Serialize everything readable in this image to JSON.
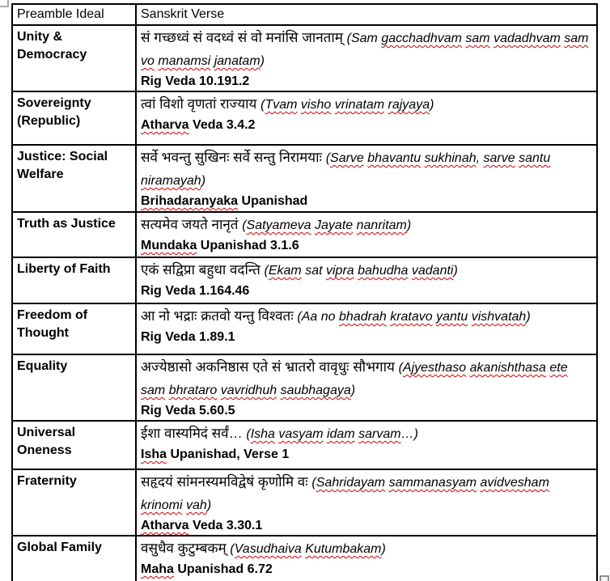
{
  "colors": {
    "border": "#000000",
    "text": "#000000",
    "spellcheck_underline": "#d40000",
    "handle_gray": "#9e9e9e",
    "background": "#ffffff"
  },
  "icons": {
    "move_handle": "table-move-handle",
    "resize_handle": "table-resize-handle"
  },
  "table": {
    "headers": [
      "Preamble Ideal",
      "Sanskrit Verse"
    ],
    "rows": [
      {
        "ideal": "Unity & Democracy",
        "devanagari": "सं गच्छध्वं सं वदध्वं सं वो मनांसि जानताम्",
        "transliteration": "(Sam gacchadhvam sam vadadhvam sam vo manamsi janatam)",
        "transliteration_flagged": [
          "gacchadhvam",
          "sam",
          "vadadhvam",
          "vo",
          "manamsi",
          "janatam"
        ],
        "citation": "Rig Veda 10.191.2",
        "citation_flagged": []
      },
      {
        "ideal": "Sovereignty (Republic)",
        "devanagari": "त्वां विशो वृणतां राज्याय",
        "transliteration": "(Tvam visho vrinatam rajyaya)",
        "transliteration_flagged": [
          "Tvam",
          "visho",
          "vrinatam",
          "rajyaya"
        ],
        "citation": "Atharva Veda 3.4.2",
        "citation_flagged": [
          "Atharva"
        ]
      },
      {
        "ideal": "Justice: Social Welfare",
        "devanagari": "सर्वे भवन्तु सुखिनः सर्वे सन्तु निरामयाः",
        "transliteration": "(Sarve bhavantu sukhinah, sarve santu niramayah)",
        "transliteration_flagged": [
          "Sarve",
          "bhavantu",
          "sukhinah",
          "sarve",
          "santu",
          "niramayah"
        ],
        "citation": "Brihadaranyaka Upanishad",
        "citation_flagged": [
          "Brihadaranyaka"
        ]
      },
      {
        "ideal": "Truth as Justice",
        "devanagari": "सत्यमेव जयते नानृतं",
        "transliteration": "(Satyameva Jayate nanritam)",
        "transliteration_flagged": [
          "Satyameva",
          "Jayate",
          "nanritam"
        ],
        "citation": "Mundaka Upanishad 3.1.6",
        "citation_flagged": [
          "Mundaka"
        ]
      },
      {
        "ideal": "Liberty of Faith",
        "devanagari": "एकं सद्विप्रा बहुधा वदन्ति",
        "transliteration": "(Ekam sat vipra bahudha vadanti)",
        "transliteration_flagged": [
          "Ekam",
          "vipra",
          "bahudha",
          "vadanti"
        ],
        "citation": "Rig Veda 1.164.46",
        "citation_flagged": []
      },
      {
        "ideal": "Freedom of Thought",
        "devanagari": "आ नो भद्राः क्रतवो यन्तु विश्वतः",
        "transliteration": "(Aa no bhadrah kratavo yantu vishvatah)",
        "transliteration_flagged": [
          "bhadrah",
          "kratavo",
          "yantu",
          "vishvatah"
        ],
        "citation": "Rig Veda 1.89.1",
        "citation_flagged": []
      },
      {
        "ideal": "Equality",
        "devanagari": "अज्येष्ठासो अकनिष्ठास एते सं भ्रातरो वावृधुः सौभगाय",
        "transliteration": "(Ajyesthaso akanishthasa ete sam bhrataro vavridhuh saubhagaya)",
        "transliteration_flagged": [
          "Ajyesthaso",
          "akanishthasa",
          "ete",
          "sam",
          "bhrataro",
          "vavridhuh",
          "saubhagaya"
        ],
        "citation": "Rig Veda 5.60.5",
        "citation_flagged": []
      },
      {
        "ideal": "Universal Oneness",
        "devanagari": "ईशा वास्यमिदं सर्वं…",
        "transliteration": "(Isha vasyam idam sarvam…)",
        "transliteration_flagged": [
          "Isha",
          "vasyam",
          "idam",
          "sarvam"
        ],
        "citation": "Isha Upanishad, Verse 1",
        "citation_flagged": [
          "Isha"
        ]
      },
      {
        "ideal": "Fraternity",
        "devanagari": "सहृदयं सांमनस्यमविद्वेषं कृणोमि वः",
        "transliteration": "(Sahridayam sammanasyam avidvesham krinomi vah)",
        "transliteration_flagged": [
          "Sahridayam",
          "sammanasyam",
          "avidvesham",
          "krinomi",
          "vah"
        ],
        "citation": "Atharva Veda 3.30.1",
        "citation_flagged": [
          "Atharva"
        ]
      },
      {
        "ideal": "Global Family",
        "devanagari": "वसुधैव कुटुम्बकम्",
        "transliteration": "(Vasudhaiva Kutumbakam)",
        "transliteration_flagged": [
          "Vasudhaiva",
          "Kutumbakam"
        ],
        "citation": "Maha Upanishad 6.72",
        "citation_flagged": [
          "Maha"
        ]
      }
    ]
  }
}
